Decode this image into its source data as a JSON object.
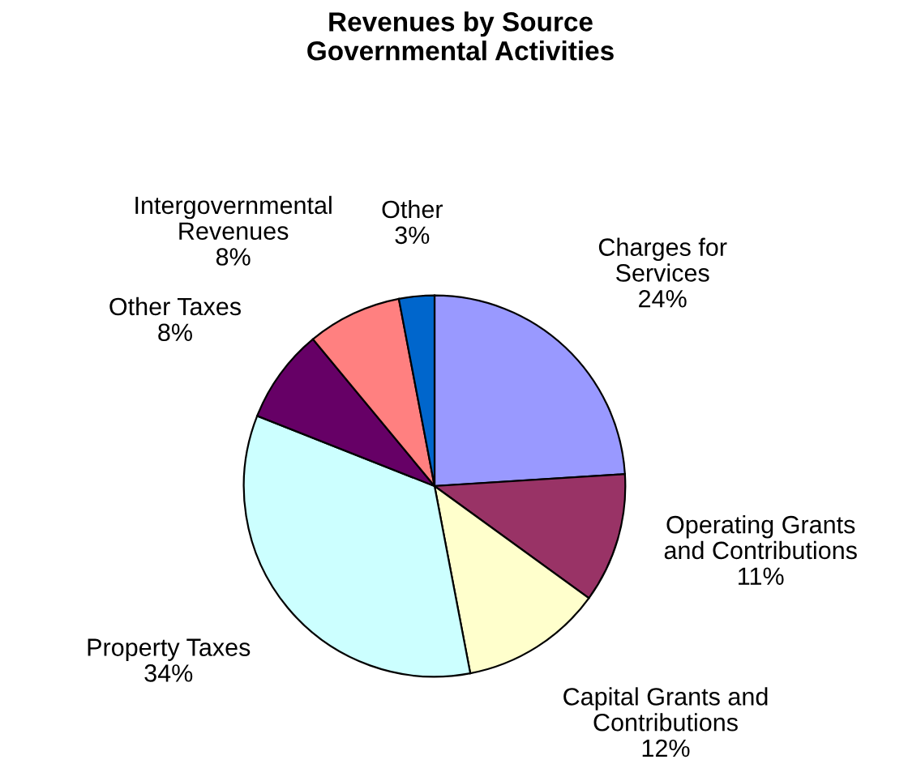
{
  "chart_data": {
    "type": "pie",
    "title": "Revenues by Source\nGovernmental Activities",
    "categories": [
      "Charges for\nServices",
      "Operating Grants\nand Contributions",
      "Capital Grants and\nContributions",
      "Property Taxes",
      "Other Taxes",
      "Intergovernmental\nRevenues",
      "Other"
    ],
    "values": [
      24,
      11,
      12,
      34,
      8,
      8,
      3
    ],
    "colors": [
      "#9999ff",
      "#993366",
      "#ffffcc",
      "#ccffff",
      "#660066",
      "#ff8080",
      "#0066cc"
    ],
    "value_labels": [
      "24%",
      "11%",
      "12%",
      "34%",
      "8%",
      "8%",
      "3%"
    ],
    "legend": false
  }
}
